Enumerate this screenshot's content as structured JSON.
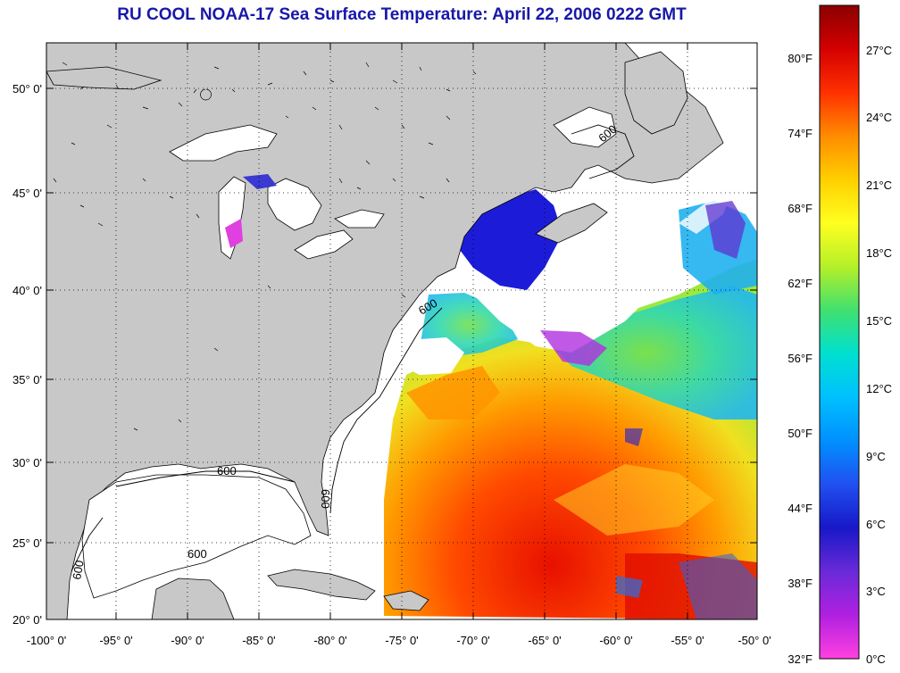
{
  "title": "RU COOL  NOAA-17  Sea Surface Temperature:  April 22, 2006 0222 GMT",
  "map": {
    "lat_labels": [
      "50° 0'",
      "45° 0'",
      "40° 0'",
      "35° 0'",
      "30° 0'",
      "25° 0'",
      "20° 0'"
    ],
    "lon_labels": [
      "-100° 0'",
      "-95° 0'",
      "-90° 0'",
      "-85° 0'",
      "-80° 0'",
      "-75° 0'",
      "-70° 0'",
      "-65° 0'",
      "-60° 0'",
      "-55° 0'",
      "-50° 0'"
    ],
    "isobath_labels": [
      "600",
      "600",
      "600",
      "600",
      "600",
      "600"
    ],
    "colors": {
      "land": "#c8c8c8",
      "cloud": "#ffffff",
      "coast": "#000000"
    }
  },
  "colorbar": {
    "fahrenheit_labels": [
      "80°F",
      "74°F",
      "68°F",
      "62°F",
      "56°F",
      "50°F",
      "44°F",
      "38°F",
      "32°F"
    ],
    "celsius_labels": [
      "27°C",
      "24°C",
      "21°C",
      "18°C",
      "15°C",
      "12°C",
      "9°C",
      "6°C",
      "3°C",
      "0°C"
    ],
    "gradient": [
      "#8b0000",
      "#d40000",
      "#ff3000",
      "#ff8c00",
      "#ffd000",
      "#ffff20",
      "#b4f028",
      "#40e070",
      "#00e0d0",
      "#00c0ff",
      "#0090ff",
      "#2050f0",
      "#1818c8",
      "#6a2ad8",
      "#b020e0",
      "#ff40e0"
    ]
  }
}
